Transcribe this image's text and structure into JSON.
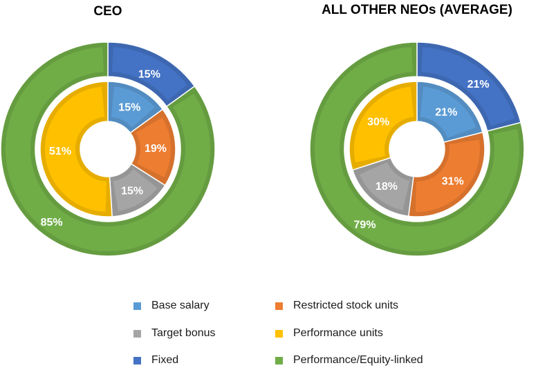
{
  "colors": {
    "base_salary": "#5b9bd5",
    "restricted_stock_units": "#ed7d31",
    "target_bonus": "#a5a5a5",
    "performance_units": "#ffc000",
    "fixed": "#4472c4",
    "performance_equity_linked": "#70ad47"
  },
  "chart_data": [
    {
      "type": "pie",
      "title": "CEO",
      "outer_ring": [
        {
          "key": "fixed",
          "label": "Fixed",
          "value": 15,
          "text": "15%"
        },
        {
          "key": "performance_equity_linked",
          "label": "Performance/Equity-linked",
          "value": 85,
          "text": "85%"
        }
      ],
      "inner_ring": [
        {
          "key": "base_salary",
          "label": "Base salary",
          "value": 15,
          "text": "15%"
        },
        {
          "key": "restricted_stock_units",
          "label": "Restricted stock units",
          "value": 19,
          "text": "19%"
        },
        {
          "key": "target_bonus",
          "label": "Target bonus",
          "value": 15,
          "text": "15%"
        },
        {
          "key": "performance_units",
          "label": "Performance units",
          "value": 51,
          "text": "51%"
        }
      ]
    },
    {
      "type": "pie",
      "title": "ALL OTHER NEOs (AVERAGE)",
      "outer_ring": [
        {
          "key": "fixed",
          "label": "Fixed",
          "value": 21,
          "text": "21%"
        },
        {
          "key": "performance_equity_linked",
          "label": "Performance/Equity-linked",
          "value": 79,
          "text": "79%"
        }
      ],
      "inner_ring": [
        {
          "key": "base_salary",
          "label": "Base salary",
          "value": 21,
          "text": "21%"
        },
        {
          "key": "restricted_stock_units",
          "label": "Restricted stock units",
          "value": 31,
          "text": "31%"
        },
        {
          "key": "target_bonus",
          "label": "Target bonus",
          "value": 18,
          "text": "18%"
        },
        {
          "key": "performance_units",
          "label": "Performance units",
          "value": 30,
          "text": "30%"
        }
      ]
    }
  ],
  "legend": {
    "base_salary": "Base salary",
    "restricted_stock_units": "Restricted stock units",
    "target_bonus": "Target bonus",
    "performance_units": "Performance units",
    "fixed": "Fixed",
    "performance_equity_linked": "Performance/Equity-linked"
  }
}
